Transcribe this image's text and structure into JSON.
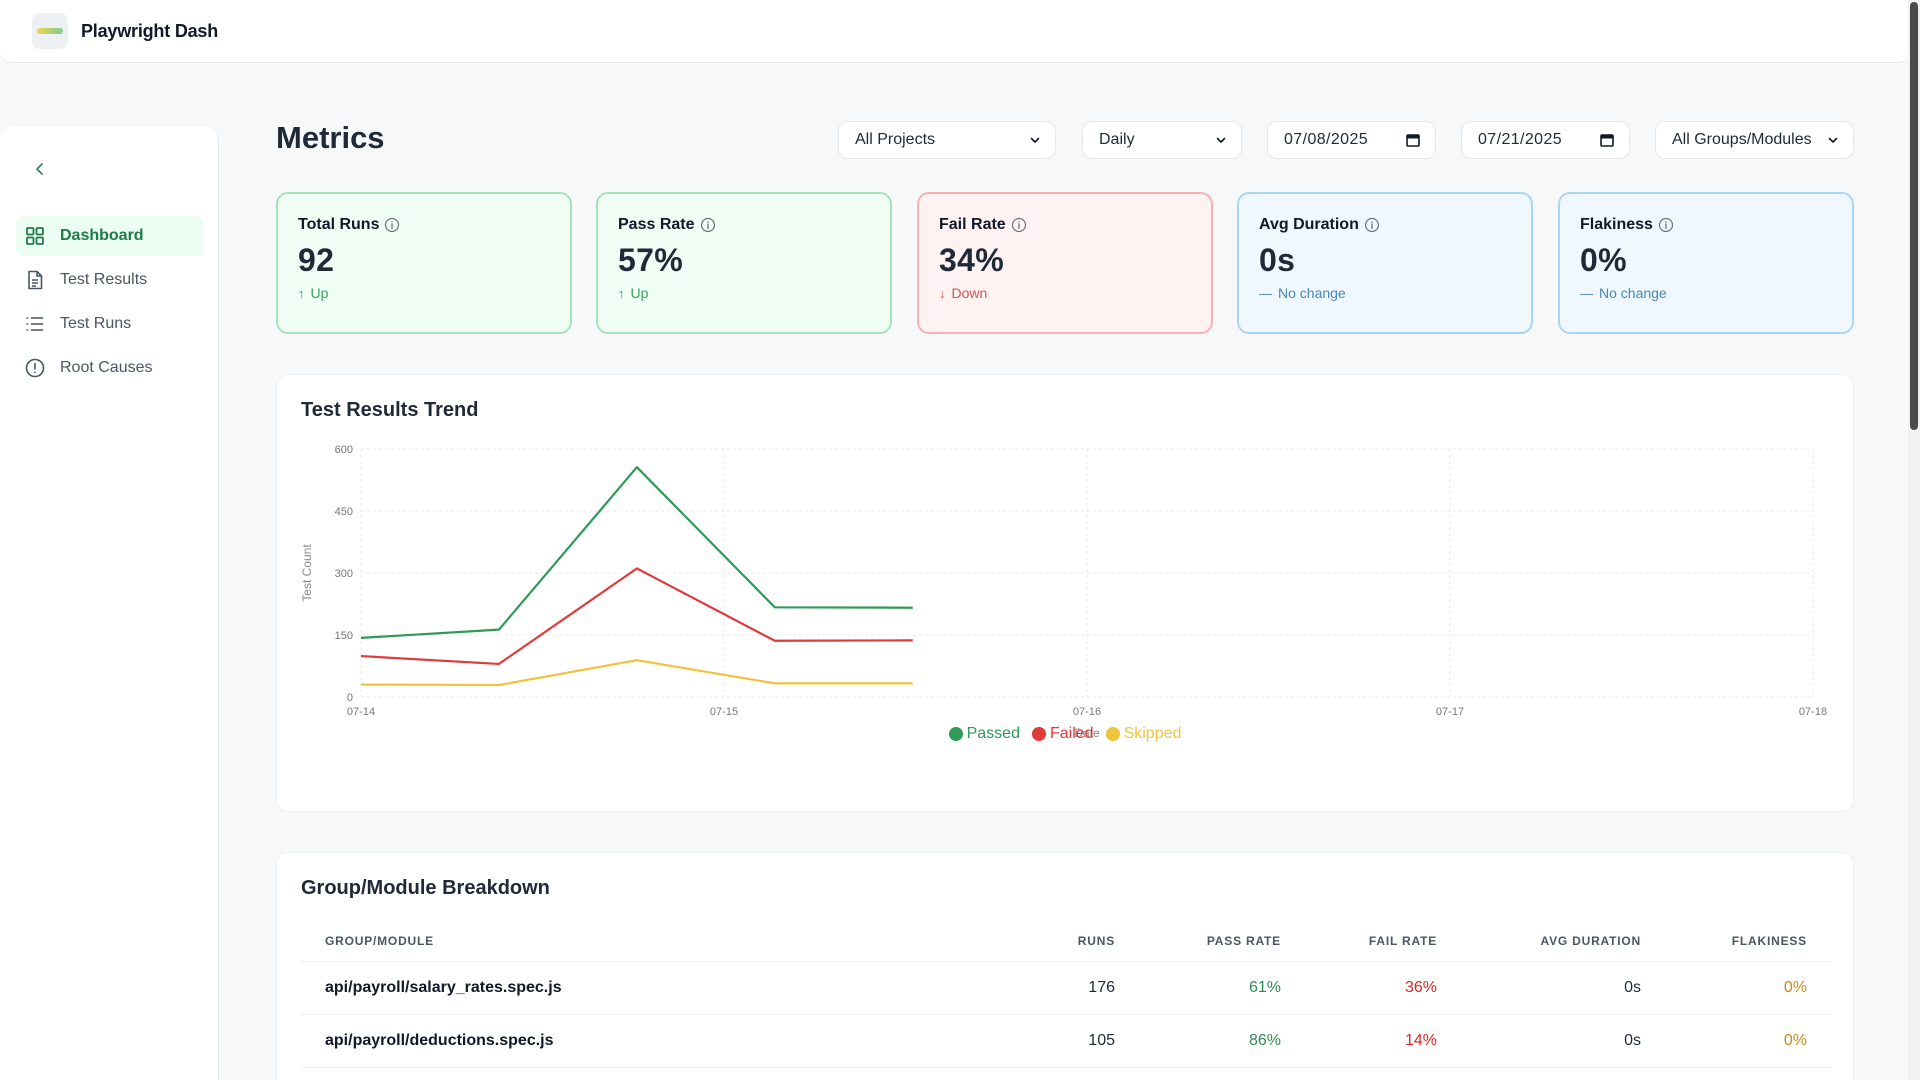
{
  "app": {
    "title": "Playwright Dash"
  },
  "sidebar": {
    "items": [
      {
        "label": "Dashboard",
        "icon": "grid-icon",
        "active": true
      },
      {
        "label": "Test Results",
        "icon": "file-icon",
        "active": false
      },
      {
        "label": "Test Runs",
        "icon": "list-icon",
        "active": false
      },
      {
        "label": "Root Causes",
        "icon": "alert-circle-icon",
        "active": false
      }
    ]
  },
  "page": {
    "title": "Metrics"
  },
  "filters": {
    "project": "All Projects",
    "interval": "Daily",
    "date_from": "07/08/2025",
    "date_to": "07/21/2025",
    "group": "All Groups/Modules"
  },
  "stats": [
    {
      "label": "Total Runs",
      "value": "92",
      "trend": "Up",
      "trend_type": "up",
      "tone": "green"
    },
    {
      "label": "Pass Rate",
      "value": "57%",
      "trend": "Up",
      "trend_type": "up",
      "tone": "green"
    },
    {
      "label": "Fail Rate",
      "value": "34%",
      "trend": "Down",
      "trend_type": "down",
      "tone": "red"
    },
    {
      "label": "Avg Duration",
      "value": "0s",
      "trend": "No change",
      "trend_type": "flat",
      "tone": "blue"
    },
    {
      "label": "Flakiness",
      "value": "0%",
      "trend": "No change",
      "trend_type": "flat",
      "tone": "blue"
    }
  ],
  "trend_panel": {
    "title": "Test Results Trend"
  },
  "chart_data": {
    "type": "line",
    "title": "Test Results Trend",
    "xlabel": "Date",
    "ylabel": "Test Count",
    "ylim": [
      0,
      600
    ],
    "yticks": [
      0,
      150,
      300,
      450,
      600
    ],
    "x_ticks": [
      "07-14",
      "07-15",
      "07-16",
      "07-17",
      "07-18"
    ],
    "xlim": [
      0,
      4
    ],
    "x": [
      0,
      0.38,
      0.76,
      1.14,
      1.52
    ],
    "series": [
      {
        "name": "Passed",
        "color": "#2e9a57",
        "values": [
          143,
          163,
          556,
          217,
          216
        ]
      },
      {
        "name": "Failed",
        "color": "#e03a3a",
        "values": [
          99,
          80,
          311,
          136,
          137
        ]
      },
      {
        "name": "Skipped",
        "color": "#efc43d",
        "values": [
          30,
          29,
          89,
          33,
          33
        ]
      }
    ],
    "legend_position": "bottom",
    "grid": true
  },
  "breakdown": {
    "title": "Group/Module Breakdown",
    "columns": [
      "Group/Module",
      "Runs",
      "Pass Rate",
      "Fail Rate",
      "Avg Duration",
      "Flakiness"
    ],
    "rows": [
      {
        "name": "api/payroll/salary_rates.spec.js",
        "runs": "176",
        "pass": "61%",
        "fail": "36%",
        "duration": "0s",
        "flaky": "0%"
      },
      {
        "name": "api/payroll/deductions.spec.js",
        "runs": "105",
        "pass": "86%",
        "fail": "14%",
        "duration": "0s",
        "flaky": "0%"
      }
    ]
  },
  "colors": {
    "accent": "#1e7b45",
    "pass": "#2e8b57",
    "fail": "#dc2626",
    "flaky": "#c98a12"
  }
}
